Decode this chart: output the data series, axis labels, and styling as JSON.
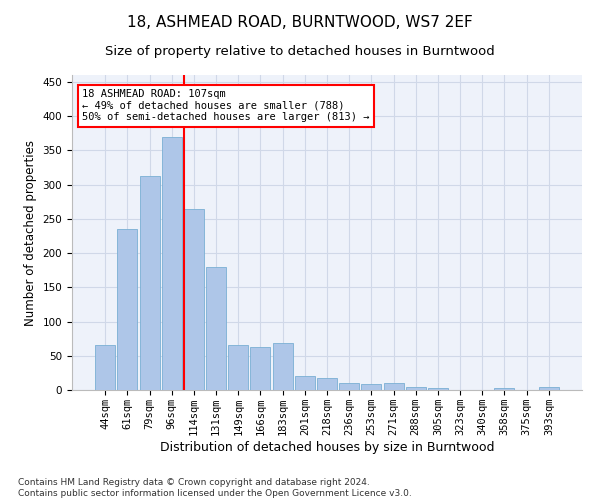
{
  "title": "18, ASHMEAD ROAD, BURNTWOOD, WS7 2EF",
  "subtitle": "Size of property relative to detached houses in Burntwood",
  "xlabel": "Distribution of detached houses by size in Burntwood",
  "ylabel": "Number of detached properties",
  "bar_labels": [
    "44sqm",
    "61sqm",
    "79sqm",
    "96sqm",
    "114sqm",
    "131sqm",
    "149sqm",
    "166sqm",
    "183sqm",
    "201sqm",
    "218sqm",
    "236sqm",
    "253sqm",
    "271sqm",
    "288sqm",
    "305sqm",
    "323sqm",
    "340sqm",
    "358sqm",
    "375sqm",
    "393sqm"
  ],
  "bar_heights": [
    65,
    235,
    312,
    370,
    265,
    180,
    65,
    63,
    68,
    20,
    18,
    10,
    9,
    10,
    4,
    3,
    0,
    0,
    3,
    0,
    4
  ],
  "bar_color": "#aec6e8",
  "bar_edgecolor": "#7aafd4",
  "vline_x": 3.57,
  "vline_color": "red",
  "annotation_text": "18 ASHMEAD ROAD: 107sqm\n← 49% of detached houses are smaller (788)\n50% of semi-detached houses are larger (813) →",
  "annotation_box_color": "white",
  "annotation_box_edgecolor": "red",
  "ylim": [
    0,
    460
  ],
  "yticks": [
    0,
    50,
    100,
    150,
    200,
    250,
    300,
    350,
    400,
    450
  ],
  "grid_color": "#d0d8e8",
  "background_color": "#eef2fa",
  "footer": "Contains HM Land Registry data © Crown copyright and database right 2024.\nContains public sector information licensed under the Open Government Licence v3.0.",
  "title_fontsize": 11,
  "subtitle_fontsize": 9.5,
  "xlabel_fontsize": 9,
  "ylabel_fontsize": 8.5,
  "tick_fontsize": 7.5,
  "footer_fontsize": 6.5,
  "annot_fontsize": 7.5
}
